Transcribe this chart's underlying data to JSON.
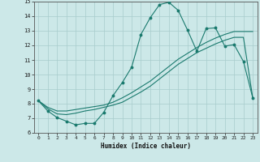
{
  "title": "",
  "xlabel": "Humidex (Indice chaleur)",
  "xlim": [
    -0.5,
    23.5
  ],
  "ylim": [
    6,
    15
  ],
  "xticks": [
    0,
    1,
    2,
    3,
    4,
    5,
    6,
    7,
    8,
    9,
    10,
    11,
    12,
    13,
    14,
    15,
    16,
    17,
    18,
    19,
    20,
    21,
    22,
    23
  ],
  "yticks": [
    6,
    7,
    8,
    9,
    10,
    11,
    12,
    13,
    14,
    15
  ],
  "background_color": "#cce8e8",
  "grid_color": "#a8cccc",
  "line_color": "#1a7a6e",
  "line1_x": [
    0,
    1,
    2,
    3,
    4,
    5,
    6,
    7,
    8,
    9,
    10,
    11,
    12,
    13,
    14,
    15,
    16,
    17,
    18,
    19,
    20,
    21,
    22,
    23
  ],
  "line1_y": [
    8.2,
    7.5,
    7.05,
    6.8,
    6.55,
    6.65,
    6.65,
    7.4,
    8.55,
    9.45,
    10.5,
    12.75,
    13.9,
    14.8,
    14.95,
    14.4,
    13.05,
    11.6,
    13.15,
    13.2,
    11.95,
    12.05,
    10.9,
    8.4
  ],
  "line2_x": [
    0,
    1,
    2,
    3,
    4,
    5,
    6,
    7,
    8,
    9,
    10,
    11,
    12,
    13,
    14,
    15,
    16,
    17,
    18,
    19,
    20,
    21,
    22,
    23
  ],
  "line2_y": [
    8.2,
    7.75,
    7.5,
    7.5,
    7.6,
    7.7,
    7.8,
    7.9,
    8.1,
    8.4,
    8.75,
    9.15,
    9.55,
    10.05,
    10.55,
    11.05,
    11.45,
    11.85,
    12.2,
    12.5,
    12.75,
    12.95,
    12.95,
    12.95
  ],
  "line3_x": [
    0,
    1,
    2,
    3,
    4,
    5,
    6,
    7,
    8,
    9,
    10,
    11,
    12,
    13,
    14,
    15,
    16,
    17,
    18,
    19,
    20,
    21,
    22,
    23
  ],
  "line3_y": [
    8.2,
    7.65,
    7.3,
    7.25,
    7.35,
    7.5,
    7.6,
    7.75,
    7.9,
    8.1,
    8.45,
    8.8,
    9.2,
    9.7,
    10.2,
    10.7,
    11.1,
    11.5,
    11.8,
    12.1,
    12.35,
    12.55,
    12.55,
    8.4
  ]
}
